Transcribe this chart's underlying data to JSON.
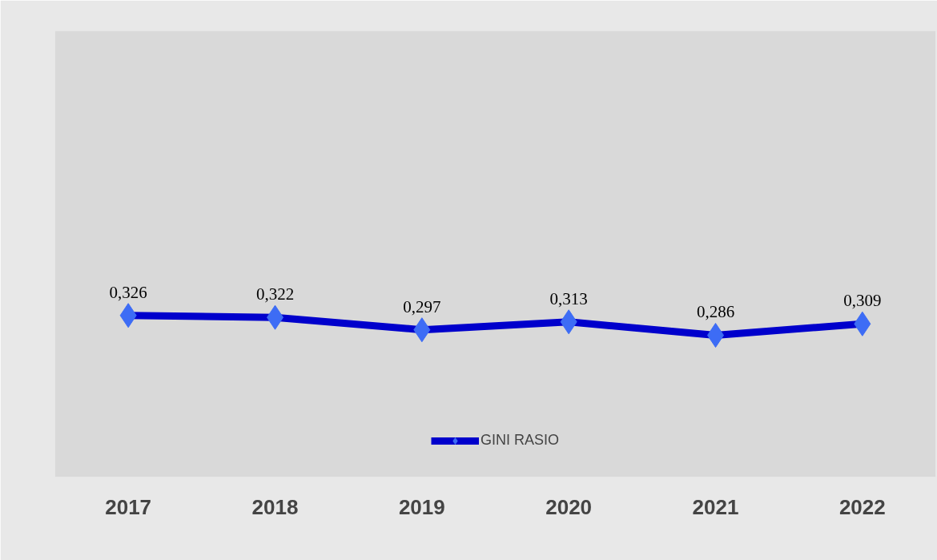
{
  "chart_data": {
    "type": "line",
    "categories": [
      "2017",
      "2018",
      "2019",
      "2020",
      "2021",
      "2022"
    ],
    "series": [
      {
        "name": "GINI RASIO",
        "color": "#0000cc",
        "values": [
          0.326,
          0.322,
          0.297,
          0.313,
          0.286,
          0.309
        ],
        "value_labels": [
          "0,326",
          "0,322",
          "0,297",
          "0,313",
          "0,286",
          "0,309"
        ]
      }
    ],
    "ylim": [
      0,
      0.9
    ],
    "tick_labels": "x",
    "grid": false,
    "legend": "bottom",
    "marker": "diamond",
    "line_style": "solid"
  }
}
